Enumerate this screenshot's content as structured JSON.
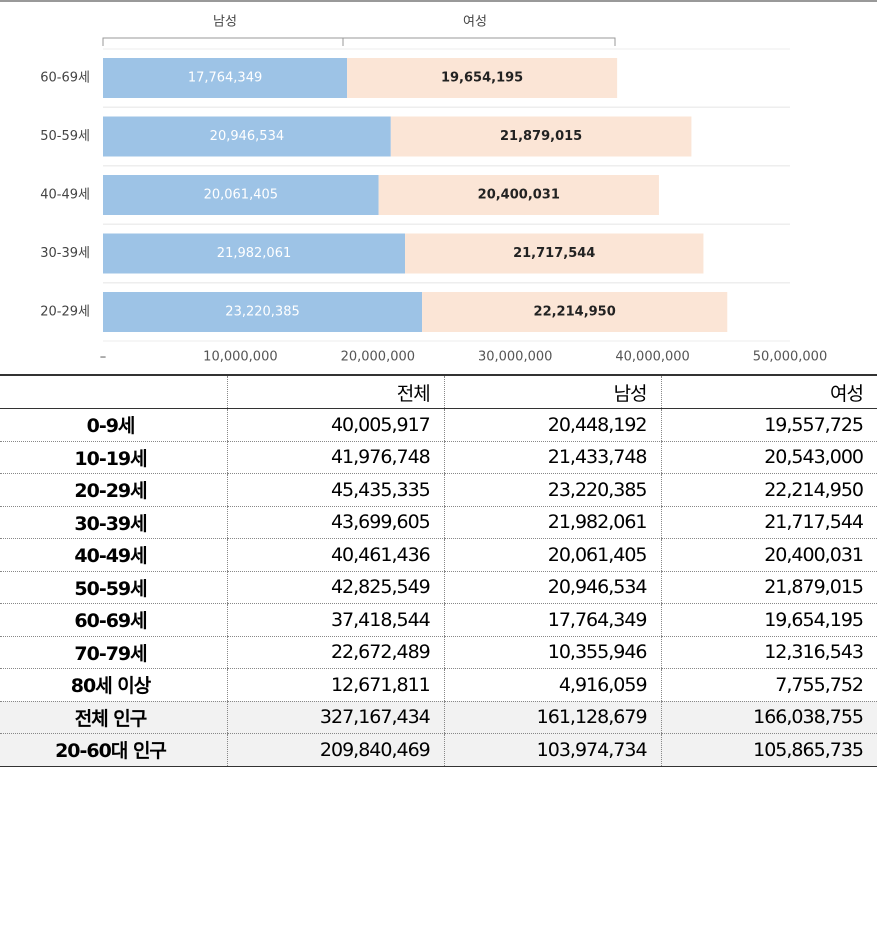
{
  "chart_data": {
    "type": "stacked_barh",
    "categories": [
      "60-69세",
      "50-59세",
      "40-49세",
      "30-39세",
      "20-29세"
    ],
    "series": [
      {
        "name": "남성",
        "color": "#9dc3e6",
        "values": [
          17764349,
          20946534,
          20061405,
          21982061,
          23220385
        ],
        "value_labels": [
          "17,764,349",
          "20,946,534",
          "20,061,405",
          "21,982,061",
          "23,220,385"
        ]
      },
      {
        "name": "여성",
        "color": "#fbe5d6",
        "values": [
          19654195,
          21879015,
          20400031,
          21717544,
          22214950
        ],
        "value_labels": [
          "19,654,195",
          "21,879,015",
          "20,400,031",
          "21,717,544",
          "22,214,950"
        ]
      }
    ],
    "xlim": [
      0,
      50000000
    ],
    "xticks": [
      {
        "value": 0,
        "label": "–"
      },
      {
        "value": 10000000,
        "label": "10,000,000"
      },
      {
        "value": 20000000,
        "label": "20,000,000"
      },
      {
        "value": 30000000,
        "label": "30,000,000"
      },
      {
        "value": 40000000,
        "label": "40,000,000"
      },
      {
        "value": 50000000,
        "label": "50,000,000"
      }
    ],
    "grid": true
  },
  "table": {
    "header": [
      "전체",
      "남성",
      "여성"
    ],
    "rows": [
      [
        "0-9세",
        "40,005,917",
        "20,448,192",
        "19,557,725"
      ],
      [
        "10-19세",
        "41,976,748",
        "21,433,748",
        "20,543,000"
      ],
      [
        "20-29세",
        "45,435,335",
        "23,220,385",
        "22,214,950"
      ],
      [
        "30-39세",
        "43,699,605",
        "21,982,061",
        "21,717,544"
      ],
      [
        "40-49세",
        "40,461,436",
        "20,061,405",
        "20,400,031"
      ],
      [
        "50-59세",
        "42,825,549",
        "20,946,534",
        "21,879,015"
      ],
      [
        "60-69세",
        "37,418,544",
        "17,764,349",
        "19,654,195"
      ],
      [
        "70-79세",
        "22,672,489",
        "10,355,946",
        "12,316,543"
      ],
      [
        "80세 이상",
        "12,671,811",
        "4,916,059",
        "7,755,752"
      ],
      [
        "전체 인구",
        "327,167,434",
        "161,128,679",
        "166,038,755"
      ],
      [
        "20-60대 인구",
        "209,840,469",
        "103,974,734",
        "105,865,735"
      ]
    ]
  }
}
